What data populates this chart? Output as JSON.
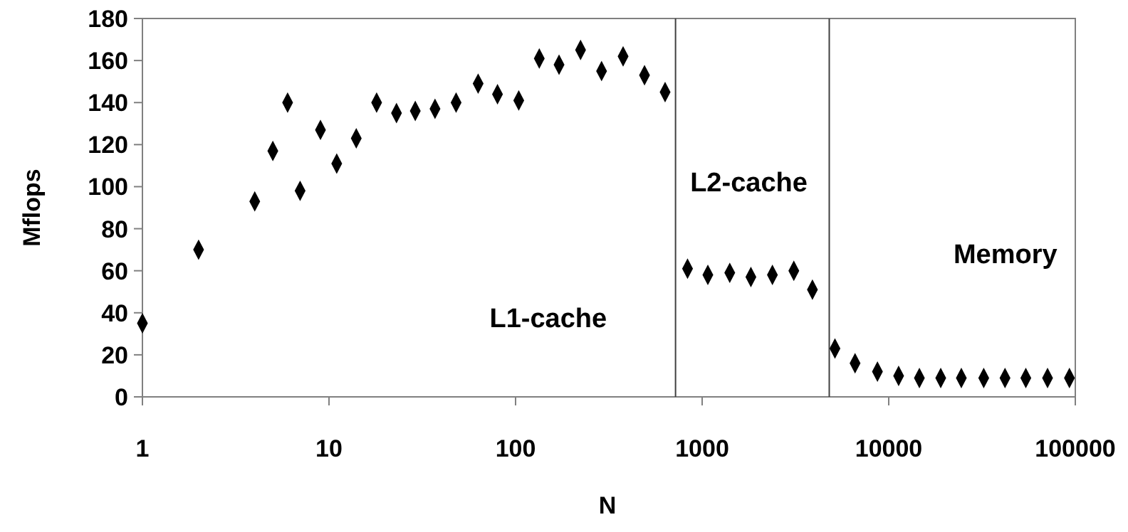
{
  "chart_data": {
    "type": "scatter",
    "xlabel": "N",
    "ylabel": "Mflops",
    "log": "x",
    "marker": "diamond",
    "grid": false,
    "xlim": [
      1,
      100000
    ],
    "xticks": [
      1,
      10,
      100,
      1000,
      10000,
      100000
    ],
    "ylim": [
      0,
      180
    ],
    "yticks": [
      0,
      20,
      40,
      60,
      80,
      100,
      120,
      140,
      160,
      180
    ],
    "series": [
      {
        "color": "#000000",
        "x": [
          1,
          2,
          4,
          5,
          6,
          7,
          9,
          11,
          14,
          18,
          23,
          29,
          37,
          48,
          63,
          80,
          104,
          134,
          171,
          223,
          289,
          377,
          491,
          633,
          835,
          1073,
          1406,
          1825,
          2380,
          3100,
          3900,
          5150,
          6600,
          8700,
          11300,
          14600,
          19000,
          24500,
          32300,
          42000,
          54300,
          71000,
          93000
        ],
        "values": [
          35,
          70,
          93,
          117,
          140,
          98,
          127,
          111,
          123,
          140,
          135,
          136,
          137,
          140,
          149,
          144,
          141,
          161,
          158,
          165,
          155,
          162,
          153,
          145,
          61,
          58,
          59,
          57,
          58,
          60,
          51,
          23,
          16,
          12,
          10,
          9,
          9,
          9,
          9,
          9,
          9,
          9,
          9
        ]
      }
    ],
    "ref_lines": [
      {
        "axis": "x",
        "value": 720,
        "color": "#404040"
      },
      {
        "axis": "x",
        "value": 4800,
        "color": "#404040"
      }
    ],
    "annotations": [
      "L1-cache",
      "L2-cache",
      "Memory"
    ]
  }
}
